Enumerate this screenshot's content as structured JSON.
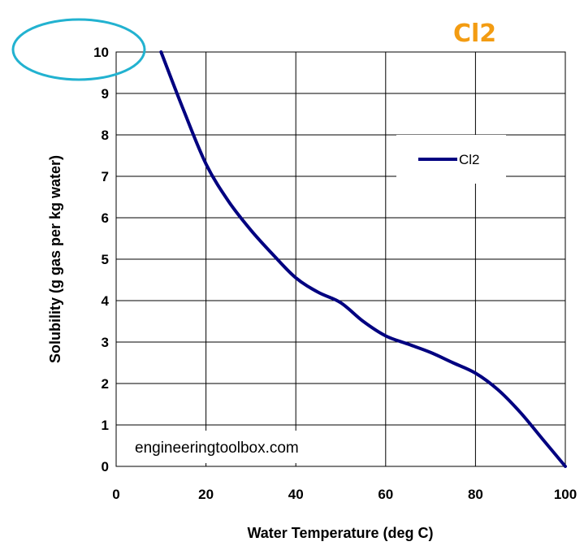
{
  "chart_data": {
    "type": "line",
    "title": "Cl2",
    "xlabel": "Water Temperature (deg C)",
    "ylabel": "Solubility (g gas per kg water)",
    "xlim": [
      0,
      100
    ],
    "ylim": [
      0,
      10
    ],
    "x_ticks": [
      "0",
      "20",
      "40",
      "60",
      "80",
      "100"
    ],
    "y_ticks": [
      "0",
      "1",
      "2",
      "3",
      "4",
      "5",
      "6",
      "7",
      "8",
      "9",
      "10"
    ],
    "grid": true,
    "legend_position": "top-right",
    "series": [
      {
        "name": "Cl2",
        "color": "#000080",
        "x": [
          10,
          15,
          20,
          25,
          30,
          35,
          40,
          45,
          50,
          55,
          60,
          65,
          70,
          75,
          80,
          85,
          90,
          95,
          100
        ],
        "y": [
          10.0,
          8.6,
          7.3,
          6.4,
          5.7,
          5.1,
          4.55,
          4.2,
          3.95,
          3.5,
          3.15,
          2.95,
          2.75,
          2.5,
          2.25,
          1.85,
          1.3,
          0.65,
          0.0
        ]
      }
    ],
    "watermark": "engineeringtoolbox.com",
    "title_color": "#F39C12",
    "highlight_color": "#22B2D0"
  }
}
